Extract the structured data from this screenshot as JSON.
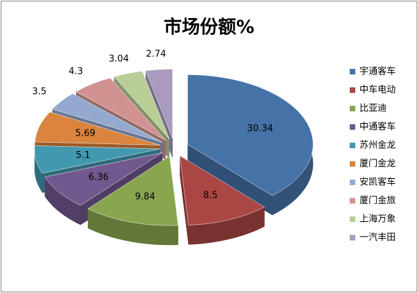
{
  "chart_data": {
    "type": "pie3d",
    "title": "市场份额%",
    "categories": [
      "宇通客车",
      "中车电动",
      "比亚迪",
      "中通客车",
      "苏州金龙",
      "厦门金龙",
      "安凯客车",
      "厦门金旅",
      "上海万象",
      "一汽丰田"
    ],
    "values": [
      30.34,
      8.5,
      9.84,
      6.36,
      5.1,
      5.69,
      3.5,
      4.3,
      3.04,
      2.74
    ],
    "colors": [
      "#4572a7",
      "#aa4643",
      "#89a54e",
      "#71588f",
      "#4198af",
      "#db843d",
      "#93a9cf",
      "#d19392",
      "#b9cd96",
      "#a99bbd"
    ],
    "legend": "right"
  }
}
